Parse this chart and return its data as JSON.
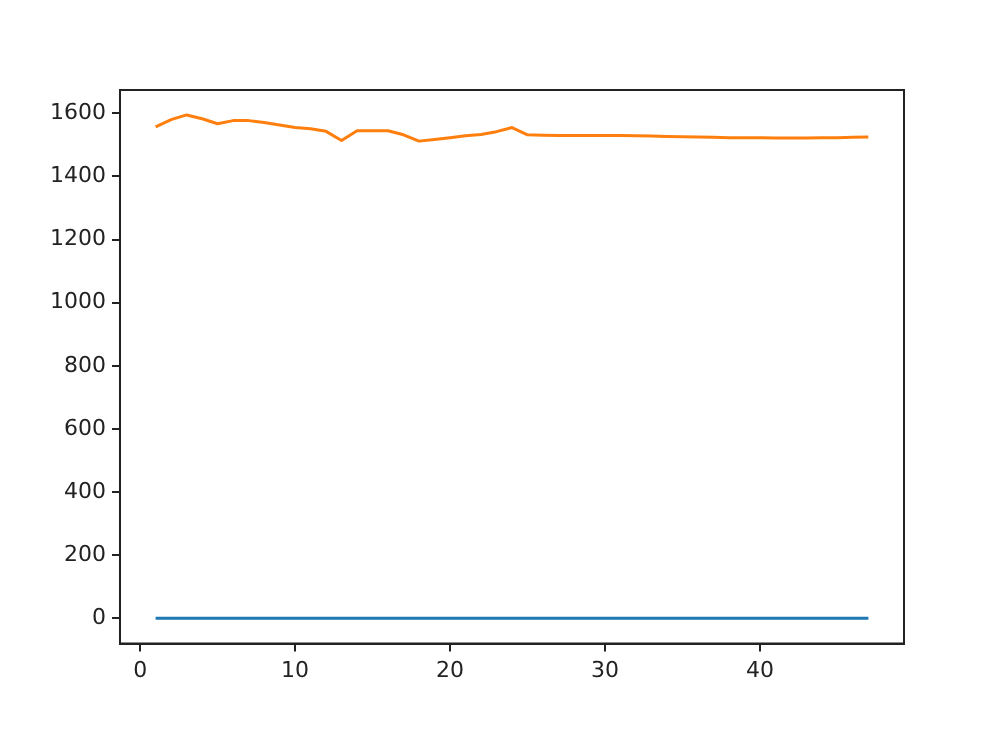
{
  "chart_data": {
    "type": "line",
    "x": [
      1,
      2,
      3,
      4,
      5,
      6,
      7,
      8,
      9,
      10,
      11,
      12,
      13,
      14,
      15,
      16,
      17,
      18,
      19,
      20,
      21,
      22,
      23,
      24,
      25,
      26,
      27,
      28,
      29,
      30,
      31,
      32,
      33,
      34,
      35,
      36,
      37,
      38,
      39,
      40,
      41,
      42,
      43,
      44,
      45,
      46,
      47
    ],
    "series": [
      {
        "color": "#1f77b4",
        "values": [
          0,
          0,
          0,
          0,
          0,
          0,
          0,
          0,
          0,
          0,
          0,
          0,
          0,
          0,
          0,
          0,
          0,
          0,
          0,
          0,
          0,
          0,
          0,
          0,
          0,
          0,
          0,
          0,
          0,
          0,
          0,
          0,
          0,
          0,
          0,
          0,
          0,
          0,
          0,
          0,
          0,
          0,
          0,
          0,
          0,
          0,
          0
        ]
      },
      {
        "color": "#ff7f0e",
        "values": [
          1557,
          1580,
          1595,
          1583,
          1567,
          1577,
          1577,
          1571,
          1563,
          1555,
          1551,
          1543,
          1514,
          1545,
          1545,
          1545,
          1532,
          1512,
          1517,
          1523,
          1529,
          1533,
          1542,
          1555,
          1532,
          1531,
          1530,
          1530,
          1530,
          1530,
          1530,
          1529,
          1528,
          1527,
          1526,
          1525,
          1524,
          1523,
          1523,
          1523,
          1522,
          1522,
          1522,
          1523,
          1523,
          1524,
          1525
        ]
      }
    ],
    "xlim": [
      -1.3,
      49.3
    ],
    "xticks": [
      0,
      10,
      20,
      30,
      40
    ],
    "ylim": [
      -80,
      1674
    ],
    "yticks": [
      0,
      200,
      400,
      600,
      800,
      1000,
      1200,
      1400,
      1600
    ],
    "grid": false,
    "legend": false,
    "marker": "none",
    "line_style": "solid"
  }
}
